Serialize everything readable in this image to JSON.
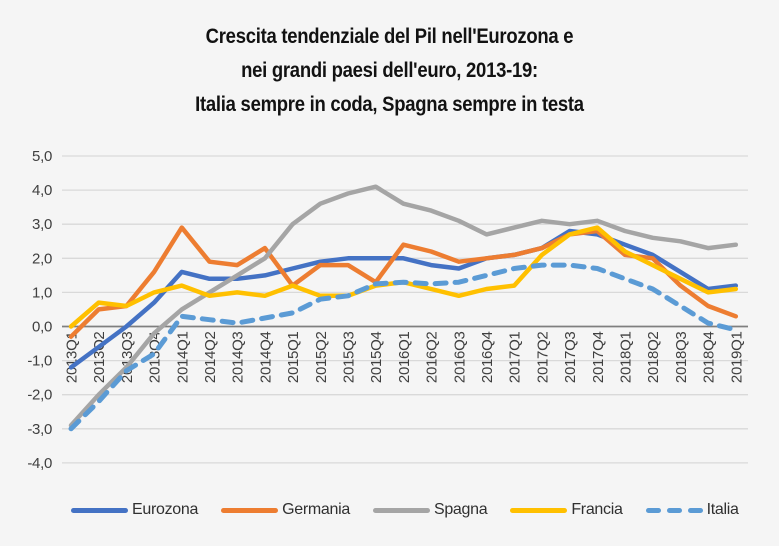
{
  "title": {
    "lines": [
      "Crescita tendenziale del Pil nell'Eurozona e",
      "nei grandi paesi dell'euro, 2013-19:",
      "Italia sempre in coda, Spagna sempre in testa"
    ]
  },
  "chart_data": {
    "type": "line",
    "x_categories": [
      "2013Q1",
      "2013Q2",
      "2013Q3",
      "2013Q4",
      "2014Q1",
      "2014Q2",
      "2014Q3",
      "2014Q4",
      "2015Q1",
      "2015Q2",
      "2015Q3",
      "2015Q4",
      "2016Q1",
      "2016Q2",
      "2016Q3",
      "2016Q4",
      "2017Q1",
      "2017Q2",
      "2017Q3",
      "2017Q4",
      "2018Q1",
      "2018Q2",
      "2018Q3",
      "2018Q4",
      "2019Q1"
    ],
    "series": [
      {
        "name": "Eurozona",
        "color": "#4472C4",
        "dashed": false,
        "values": [
          -1.2,
          -0.6,
          0.0,
          0.7,
          1.6,
          1.4,
          1.4,
          1.5,
          1.7,
          1.9,
          2.0,
          2.0,
          2.0,
          1.8,
          1.7,
          2.0,
          2.1,
          2.3,
          2.8,
          2.7,
          2.4,
          2.1,
          1.6,
          1.1,
          1.2
        ]
      },
      {
        "name": "Germania",
        "color": "#ED7D31",
        "dashed": false,
        "values": [
          -0.3,
          0.5,
          0.6,
          1.6,
          2.9,
          1.9,
          1.8,
          2.3,
          1.2,
          1.8,
          1.8,
          1.3,
          2.4,
          2.2,
          1.9,
          2.0,
          2.1,
          2.3,
          2.7,
          2.8,
          2.1,
          2.0,
          1.2,
          0.6,
          0.3
        ]
      },
      {
        "name": "Spagna",
        "color": "#A5A5A5",
        "dashed": false,
        "values": [
          -2.9,
          -2.0,
          -1.2,
          -0.2,
          0.5,
          1.0,
          1.5,
          2.0,
          3.0,
          3.6,
          3.9,
          4.1,
          3.6,
          3.4,
          3.1,
          2.7,
          2.9,
          3.1,
          3.0,
          3.1,
          2.8,
          2.6,
          2.5,
          2.3,
          2.4
        ]
      },
      {
        "name": "Francia",
        "color": "#FFC000",
        "dashed": false,
        "values": [
          0.0,
          0.7,
          0.6,
          1.0,
          1.2,
          0.9,
          1.0,
          0.9,
          1.2,
          0.9,
          0.9,
          1.2,
          1.3,
          1.1,
          0.9,
          1.1,
          1.2,
          2.1,
          2.7,
          2.9,
          2.2,
          1.8,
          1.4,
          1.0,
          1.1
        ]
      },
      {
        "name": "Italia",
        "color": "#5B9BD5",
        "dashed": true,
        "values": [
          -3.0,
          -2.2,
          -1.3,
          -0.8,
          0.3,
          0.2,
          0.1,
          0.25,
          0.4,
          0.8,
          0.9,
          1.25,
          1.3,
          1.25,
          1.3,
          1.5,
          1.7,
          1.8,
          1.8,
          1.7,
          1.4,
          1.1,
          0.6,
          0.1,
          -0.1
        ]
      }
    ],
    "y_axis": {
      "min": -4,
      "max": 5,
      "ticks": [
        {
          "label": "5,0",
          "value": 5
        },
        {
          "label": "4,0",
          "value": 4
        },
        {
          "label": "3,0",
          "value": 3
        },
        {
          "label": "2,0",
          "value": 2
        },
        {
          "label": "1,0",
          "value": 1
        },
        {
          "label": "0,0",
          "value": 0
        },
        {
          "label": "-1,0",
          "value": -1
        },
        {
          "label": "-2,0",
          "value": -2
        },
        {
          "label": "-3,0",
          "value": -3
        },
        {
          "label": "-4,0",
          "value": -4
        }
      ]
    },
    "grid": true,
    "legend_position": "bottom",
    "title": "Crescita tendenziale del Pil nell'Eurozona e nei grandi paesi dell'euro, 2013-19: Italia sempre in coda, Spagna sempre in testa"
  },
  "colors": {
    "background": "#F5F5F5",
    "gridline": "#D9D9D9",
    "zero_line": "#7F7F7F",
    "axis_text": "#404040",
    "title_text": "#121212"
  }
}
